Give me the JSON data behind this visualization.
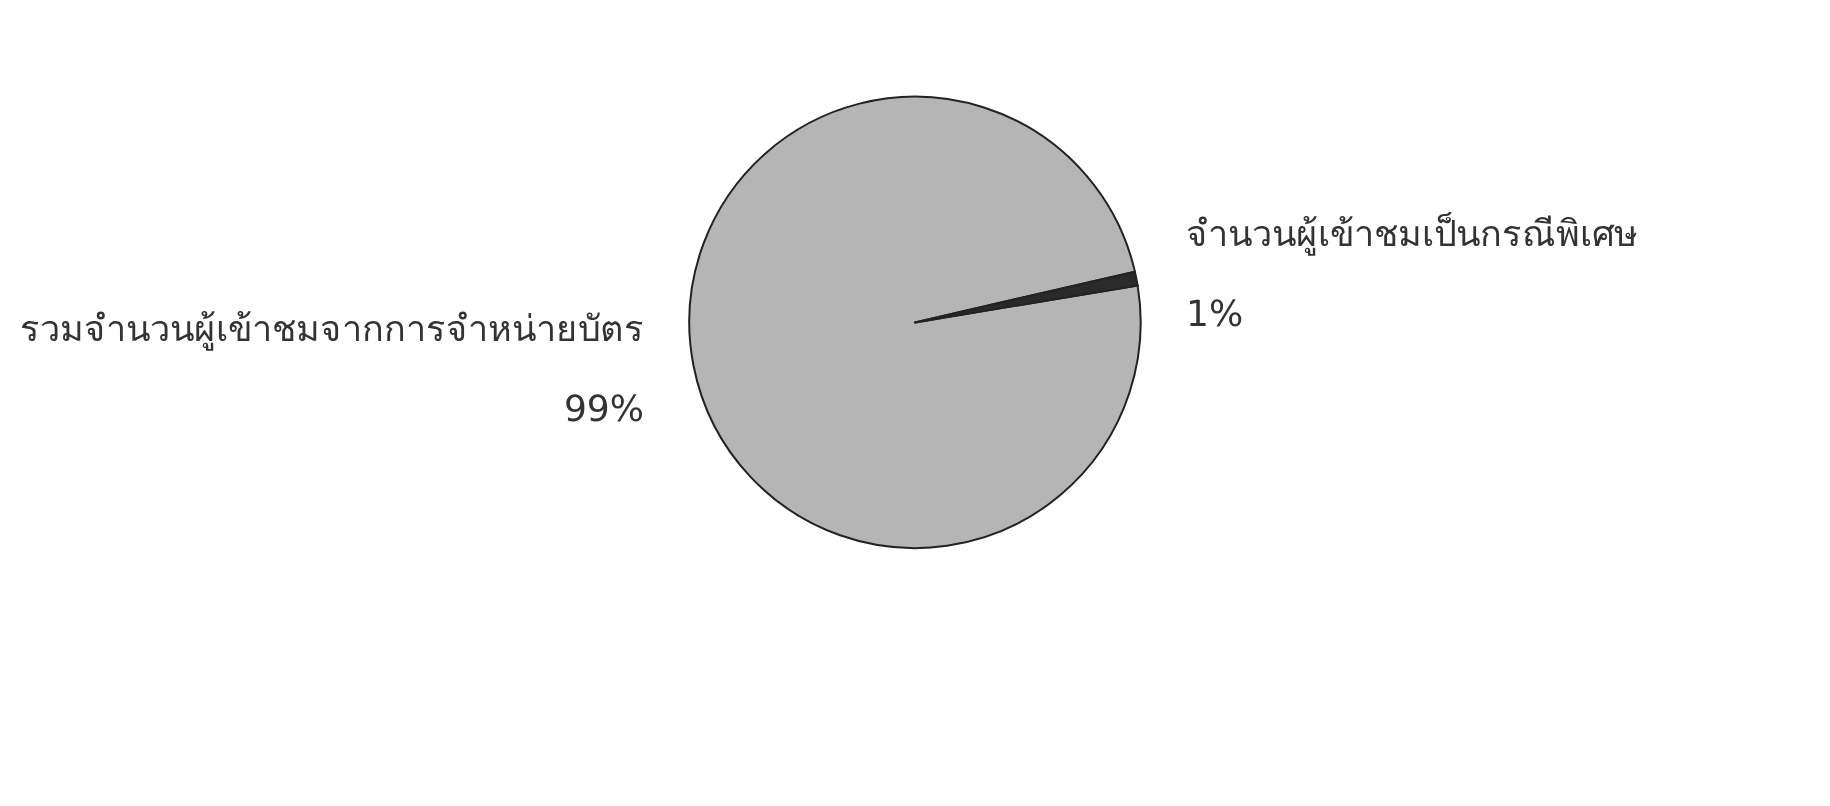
{
  "chart_data": {
    "type": "pie",
    "categories": [
      "รวมจำนวนผู้เข้าชมจากการจำหน่ายบัตร",
      "จำนวนผู้เข้าชมเป็นกรณีพิเศษ"
    ],
    "values": [
      99,
      1
    ],
    "colors": [
      "#b5b5b5",
      "#2a2a2a"
    ],
    "value_labels": [
      "99%",
      "1%"
    ],
    "legend": false
  }
}
